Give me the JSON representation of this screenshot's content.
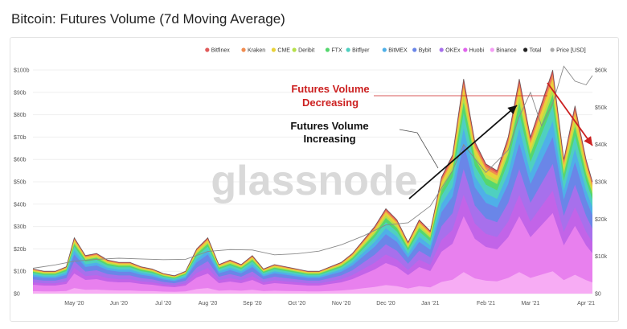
{
  "page": {
    "title": "Bitcoin: Futures Volume (7d Moving Average)",
    "watermark": "glassnode"
  },
  "annotations": {
    "decreasing_line1": "Futures Volume",
    "decreasing_line2": "Decreasing",
    "increasing_line1": "Futures Volume",
    "increasing_line2": "Increasing",
    "decreasing_color": "#cc2020",
    "increasing_color": "#111111"
  },
  "chart_data": {
    "type": "area",
    "stacked": true,
    "x": [
      "2020-04-14",
      "2020-04-21",
      "2020-04-28",
      "2020-05-05",
      "2020-05-10",
      "2020-05-17",
      "2020-05-24",
      "2020-05-31",
      "2020-06-07",
      "2020-06-14",
      "2020-06-21",
      "2020-06-28",
      "2020-07-05",
      "2020-07-12",
      "2020-07-19",
      "2020-07-26",
      "2020-08-02",
      "2020-08-09",
      "2020-08-16",
      "2020-08-23",
      "2020-08-30",
      "2020-09-06",
      "2020-09-13",
      "2020-09-20",
      "2020-09-27",
      "2020-10-04",
      "2020-10-11",
      "2020-10-18",
      "2020-10-25",
      "2020-11-01",
      "2020-11-08",
      "2020-11-15",
      "2020-11-22",
      "2020-11-29",
      "2020-12-06",
      "2020-12-13",
      "2020-12-20",
      "2020-12-27",
      "2021-01-03",
      "2021-01-10",
      "2021-01-17",
      "2021-01-24",
      "2021-01-31",
      "2021-02-07",
      "2021-02-14",
      "2021-02-21",
      "2021-02-28",
      "2021-03-07",
      "2021-03-14",
      "2021-03-21",
      "2021-03-28",
      "2021-04-01"
    ],
    "totals": [
      11,
      10,
      10,
      12,
      25,
      17,
      18,
      15,
      14,
      14,
      12,
      11,
      9,
      8,
      10,
      20,
      25,
      13,
      15,
      13,
      17,
      11,
      13,
      12,
      11,
      10,
      10,
      12,
      14,
      18,
      24,
      30,
      38,
      33,
      23,
      33,
      28,
      52,
      62,
      96,
      68,
      58,
      55,
      70,
      96,
      70,
      85,
      100,
      60,
      84,
      60,
      50
    ],
    "price_x": [
      "2020-04-14",
      "2020-04-28",
      "2020-05-10",
      "2020-05-24",
      "2020-06-07",
      "2020-06-21",
      "2020-07-05",
      "2020-07-19",
      "2020-08-02",
      "2020-08-16",
      "2020-08-30",
      "2020-09-13",
      "2020-09-27",
      "2020-10-11",
      "2020-10-25",
      "2020-11-08",
      "2020-11-22",
      "2020-12-06",
      "2020-12-20",
      "2021-01-03",
      "2021-01-10",
      "2021-01-24",
      "2021-02-07",
      "2021-02-14",
      "2021-02-21",
      "2021-02-28",
      "2021-03-07",
      "2021-03-14",
      "2021-03-21",
      "2021-03-28",
      "2021-04-01"
    ],
    "price": [
      6800,
      7700,
      8700,
      9200,
      9500,
      9300,
      9100,
      9200,
      11300,
      11800,
      11700,
      10400,
      10700,
      11400,
      13100,
      15500,
      18400,
      19000,
      23500,
      33000,
      40000,
      32500,
      38500,
      47500,
      54000,
      45000,
      51000,
      61000,
      57000,
      56000,
      58500
    ],
    "band_fractions": [
      0.02,
      0.02,
      0.04,
      0.03,
      0.05,
      0.07,
      0.07,
      0.12,
      0.12,
      0.1,
      0.26,
      0.1
    ],
    "series": [
      {
        "name": "Bitfinex",
        "color": "#e05a5a"
      },
      {
        "name": "Kraken",
        "color": "#f08c50"
      },
      {
        "name": "CME",
        "color": "#e8d23a"
      },
      {
        "name": "Deribit",
        "color": "#b6e04b"
      },
      {
        "name": "FTX",
        "color": "#55d76e"
      },
      {
        "name": "Bitflyer",
        "color": "#4fd0c0"
      },
      {
        "name": "BitMEX",
        "color": "#4fb0e8"
      },
      {
        "name": "Bybit",
        "color": "#6a86e8"
      },
      {
        "name": "OKEx",
        "color": "#a770ec"
      },
      {
        "name": "Huobi",
        "color": "#e064ec"
      },
      {
        "name": "Binance",
        "color": "#f59cf5"
      },
      {
        "name": "Total",
        "color": "#222222"
      },
      {
        "name": "Price [USD]",
        "color": "#aaaaaa"
      }
    ],
    "stack_colors": [
      "#e05a5a",
      "#f08c50",
      "#e8d23a",
      "#b6e04b",
      "#55d76e",
      "#4fd0c0",
      "#4fb0e8",
      "#6a86e8",
      "#a770ec",
      "#c264e8",
      "#e880ee",
      "#f7acf4"
    ],
    "x_tick_labels": [
      "May '20",
      "Jun '20",
      "Jul '20",
      "Aug '20",
      "Sep '20",
      "Oct '20",
      "Nov '20",
      "Dec '20",
      "Jan '21",
      "Feb '21",
      "Mar '21",
      "Apr '21"
    ],
    "x_tick_dates": [
      "2020-05-10",
      "2020-06-07",
      "2020-07-05",
      "2020-08-02",
      "2020-08-30",
      "2020-09-27",
      "2020-10-25",
      "2020-11-22",
      "2020-12-20",
      "2021-01-24",
      "2021-02-21",
      "2021-03-28"
    ],
    "y_left_ticks": [
      "$0",
      "$10b",
      "$20b",
      "$30b",
      "$40b",
      "$50b",
      "$60b",
      "$70b",
      "$80b",
      "$90b",
      "$100b"
    ],
    "y_right_ticks": [
      "$0",
      "$10k",
      "$20k",
      "$30k",
      "$40k",
      "$50k",
      "$60k"
    ],
    "ylim_left": [
      0,
      100
    ],
    "ylim_right": [
      0,
      60000
    ],
    "legend_position": "top-right"
  }
}
